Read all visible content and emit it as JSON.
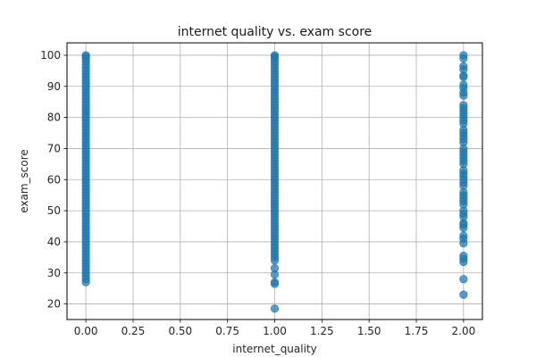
{
  "chart_data": {
    "type": "scatter",
    "title": "internet quality vs. exam score",
    "xlabel": "internet_quality",
    "ylabel": "exam_score",
    "xlim": [
      -0.1,
      2.1
    ],
    "ylim": [
      15,
      104
    ],
    "xticks": [
      0.0,
      0.25,
      0.5,
      0.75,
      1.0,
      1.25,
      1.5,
      1.75,
      2.0
    ],
    "xtick_labels": [
      "0.00",
      "0.25",
      "0.50",
      "0.75",
      "1.00",
      "1.25",
      "1.50",
      "1.75",
      "2.00"
    ],
    "yticks": [
      20,
      30,
      40,
      50,
      60,
      70,
      80,
      90,
      100
    ],
    "ytick_labels": [
      "20",
      "30",
      "40",
      "50",
      "60",
      "70",
      "80",
      "90",
      "100"
    ],
    "grid": true,
    "marker_color": "#1f77b4",
    "series": [
      {
        "x": 0,
        "y": [
          100,
          99.5,
          99,
          98,
          97,
          96,
          95,
          94,
          93,
          92,
          91,
          90,
          89,
          88,
          87,
          86,
          85,
          84,
          83,
          82,
          81,
          80,
          79,
          78,
          77,
          76,
          75,
          74,
          73,
          72,
          71,
          70,
          69,
          68,
          67,
          66,
          65,
          64,
          63,
          62,
          61,
          60,
          59,
          58,
          57,
          56,
          55,
          54,
          53,
          52,
          51,
          50,
          49,
          48,
          47,
          46,
          45,
          44,
          43,
          42,
          41,
          40,
          39,
          38,
          37,
          36,
          35,
          34,
          33,
          32,
          31,
          30,
          29,
          28,
          27
        ]
      },
      {
        "x": 1,
        "y": [
          100,
          99.5,
          99,
          98,
          97,
          96,
          95,
          94,
          93,
          92,
          91,
          90,
          89,
          88,
          87,
          86,
          85,
          84,
          83,
          82,
          81,
          80,
          79,
          78,
          77,
          76,
          75,
          74,
          73,
          72,
          71,
          70,
          69,
          68,
          67,
          66,
          65,
          64,
          63,
          62,
          61,
          60,
          59,
          58,
          57,
          56,
          55,
          54,
          53,
          52,
          51,
          50,
          49,
          48,
          47,
          46,
          45,
          44,
          43,
          42,
          41,
          40,
          39,
          38,
          37,
          36,
          35,
          34,
          31.5,
          29.5,
          27,
          26.5,
          18.5
        ]
      },
      {
        "x": 2,
        "y": [
          100,
          99,
          96.5,
          95.5,
          93.5,
          93,
          90.5,
          89.5,
          88,
          87,
          84,
          83,
          82,
          81,
          80,
          79,
          78,
          76,
          75,
          74,
          73,
          72,
          70,
          69,
          68,
          67,
          66,
          65,
          63,
          62,
          61,
          60,
          59,
          58,
          56,
          55,
          54,
          53,
          52,
          50,
          49,
          48,
          46,
          45.5,
          44.5,
          42,
          41,
          39.5,
          35.5,
          34.5,
          33.5,
          28,
          23
        ]
      }
    ]
  }
}
